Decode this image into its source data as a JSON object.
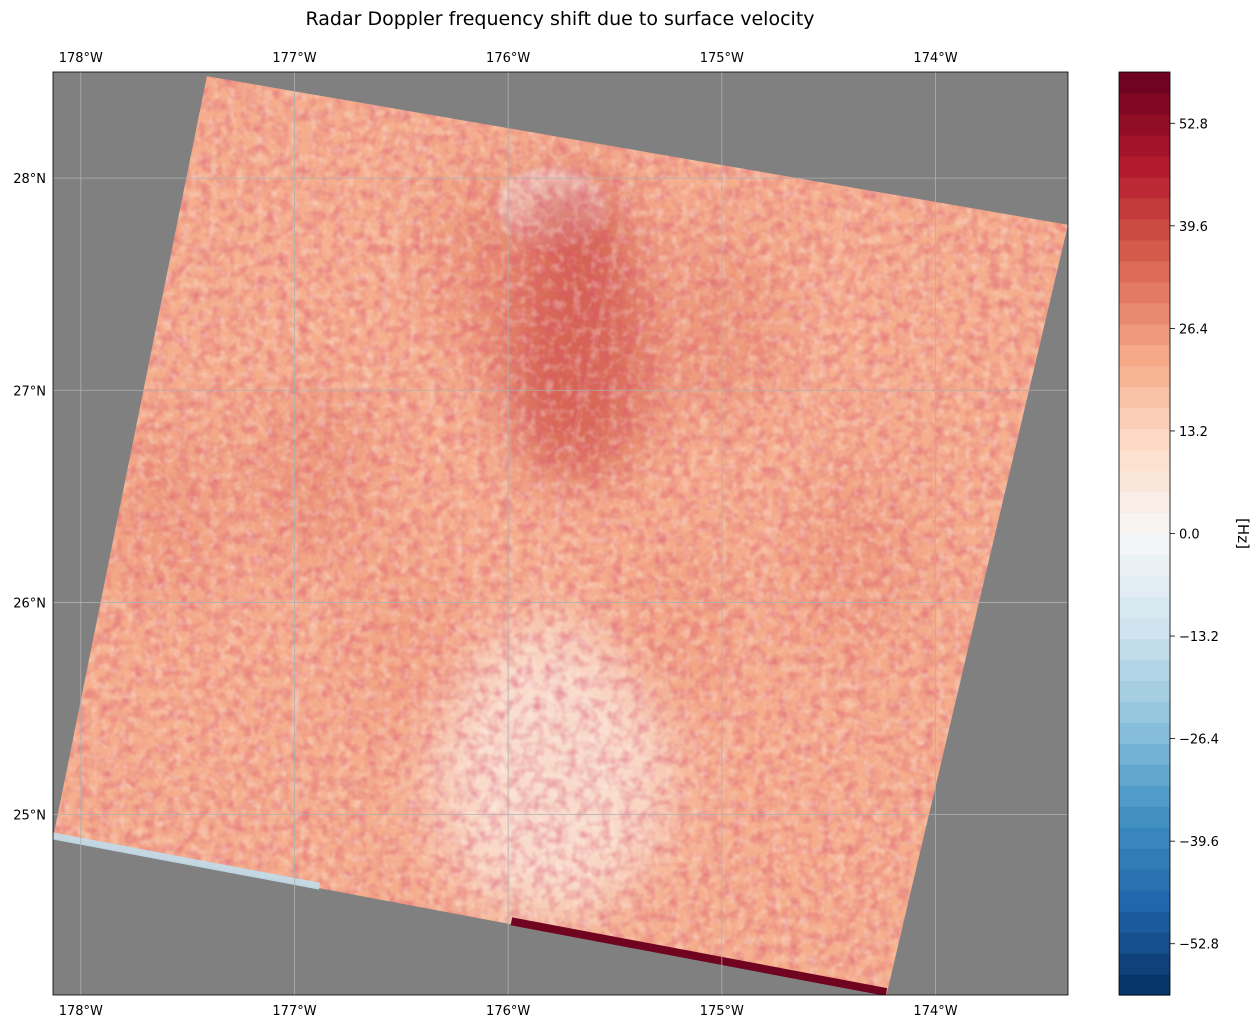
{
  "chart_data": {
    "type": "heatmap",
    "title": "Radar Doppler frequency shift due to surface velocity",
    "map": {
      "lon_range": [
        -178.13,
        -173.38
      ],
      "lat_range": [
        24.15,
        28.5
      ],
      "background_color": "#808080",
      "grid": true,
      "x_ticks": [
        {
          "value": -178,
          "label": "178°W"
        },
        {
          "value": -177,
          "label": "177°W"
        },
        {
          "value": -176,
          "label": "176°W"
        },
        {
          "value": -175,
          "label": "175°W"
        },
        {
          "value": -174,
          "label": "174°W"
        }
      ],
      "y_ticks": [
        {
          "value": 28,
          "label": "28°N"
        },
        {
          "value": 27,
          "label": "27°N"
        },
        {
          "value": 26,
          "label": "26°N"
        },
        {
          "value": 25,
          "label": "25°N"
        }
      ],
      "swath_corners": [
        {
          "corner": "north-west",
          "lon": -177.41,
          "lat": 28.48
        },
        {
          "corner": "north-east",
          "lon": -173.38,
          "lat": 27.78
        },
        {
          "corner": "south-east",
          "lon": -174.23,
          "lat": 24.15
        },
        {
          "corner": "south-west",
          "lon": -178.13,
          "lat": 24.89
        }
      ],
      "swath_mean_value": 22,
      "features": [
        {
          "name": "bright-patch",
          "lon": -175.8,
          "lat": 27.86,
          "value": 8
        },
        {
          "name": "dark-band",
          "lon": -175.7,
          "lat": 27.3,
          "value": 40
        },
        {
          "name": "low-shift-region",
          "lon": -175.8,
          "lat": 25.2,
          "value": 6
        },
        {
          "name": "negative-edge",
          "lon": -177.4,
          "lat": 24.75,
          "value": -15
        },
        {
          "name": "positive-edge",
          "lon": -174.8,
          "lat": 24.25,
          "value": 58
        }
      ]
    },
    "colorbar": {
      "label": "[Hz]",
      "colormap": "RdBu_r",
      "range": [
        -59.4,
        59.4
      ],
      "ticks": [
        {
          "value": 52.8,
          "label": "52.8"
        },
        {
          "value": 39.6,
          "label": "39.6"
        },
        {
          "value": 26.4,
          "label": "26.4"
        },
        {
          "value": 13.2,
          "label": "13.2"
        },
        {
          "value": 0,
          "label": "0.0"
        },
        {
          "value": -13.2,
          "label": "−13.2"
        },
        {
          "value": -26.4,
          "label": "−26.4"
        },
        {
          "value": -39.6,
          "label": "−39.6"
        },
        {
          "value": -52.8,
          "label": "−52.8"
        }
      ]
    }
  }
}
